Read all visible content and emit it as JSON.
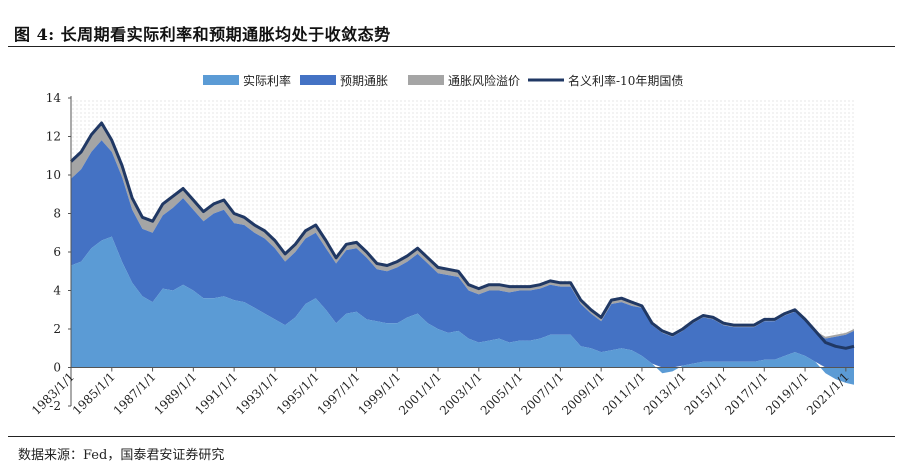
{
  "header": {
    "title": "图 4: 长周期看实际利率和预期通胀均处于收敛态势"
  },
  "footer": {
    "source": "数据来源：Fed，国泰君安证券研究"
  },
  "colors": {
    "real_rate": "#5b9bd5",
    "expected_inflation": "#4472c4",
    "inflation_risk_premium": "#a5a5a5",
    "nominal_10y": "#203864",
    "plot_background_dots": "#d9d9d9"
  },
  "chart_data": {
    "type": "area",
    "title": "",
    "xlabel": "",
    "ylabel": "",
    "ylim": [
      -2,
      14
    ],
    "yticks": [
      -2,
      0,
      2,
      4,
      6,
      8,
      10,
      12,
      14
    ],
    "xlim": [
      1983.0,
      2021.4
    ],
    "xtick_labels": [
      "1983/1/1",
      "1985/1/1",
      "1987/1/1",
      "1989/1/1",
      "1991/1/1",
      "1993/1/1",
      "1995/1/1",
      "1997/1/1",
      "1999/1/1",
      "2001/1/1",
      "2003/1/1",
      "2005/1/1",
      "2007/1/1",
      "2009/1/1",
      "2011/1/1",
      "2013/1/1",
      "2015/1/1",
      "2017/1/1",
      "2019/1/1",
      "2021/1/1"
    ],
    "legend": {
      "position": "top-center",
      "entries": [
        "实际利率",
        "预期通胀",
        "通胀风险溢价",
        "名义利率-10年期国债"
      ]
    },
    "grid": false,
    "x": [
      1983.0,
      1983.5,
      1984.0,
      1984.5,
      1985.0,
      1985.5,
      1986.0,
      1986.5,
      1987.0,
      1987.5,
      1988.0,
      1988.5,
      1989.0,
      1989.5,
      1990.0,
      1990.5,
      1991.0,
      1991.5,
      1992.0,
      1992.5,
      1993.0,
      1993.5,
      1994.0,
      1994.5,
      1995.0,
      1995.5,
      1996.0,
      1996.5,
      1997.0,
      1997.5,
      1998.0,
      1998.5,
      1999.0,
      1999.5,
      2000.0,
      2000.5,
      2001.0,
      2001.5,
      2002.0,
      2002.5,
      2003.0,
      2003.5,
      2004.0,
      2004.5,
      2005.0,
      2005.5,
      2006.0,
      2006.5,
      2007.0,
      2007.5,
      2008.0,
      2008.5,
      2009.0,
      2009.5,
      2010.0,
      2010.5,
      2011.0,
      2011.5,
      2012.0,
      2012.5,
      2013.0,
      2013.5,
      2014.0,
      2014.5,
      2015.0,
      2015.5,
      2016.0,
      2016.5,
      2017.0,
      2017.5,
      2018.0,
      2018.5,
      2019.0,
      2019.5,
      2020.0,
      2020.5,
      2021.0,
      2021.4
    ],
    "series": [
      {
        "name": "实际利率",
        "values": [
          5.3,
          5.5,
          6.2,
          6.6,
          6.8,
          5.5,
          4.4,
          3.7,
          3.4,
          4.1,
          4.0,
          4.3,
          4.0,
          3.6,
          3.6,
          3.7,
          3.5,
          3.4,
          3.1,
          2.8,
          2.5,
          2.2,
          2.6,
          3.3,
          3.6,
          3.0,
          2.3,
          2.8,
          2.9,
          2.5,
          2.4,
          2.3,
          2.3,
          2.6,
          2.8,
          2.3,
          2.0,
          1.8,
          1.9,
          1.5,
          1.3,
          1.4,
          1.5,
          1.3,
          1.4,
          1.4,
          1.5,
          1.7,
          1.7,
          1.7,
          1.1,
          1.0,
          0.8,
          0.9,
          1.0,
          0.9,
          0.6,
          0.2,
          -0.3,
          -0.2,
          0.1,
          0.2,
          0.3,
          0.3,
          0.3,
          0.3,
          0.3,
          0.3,
          0.4,
          0.4,
          0.6,
          0.8,
          0.6,
          0.3,
          -0.3,
          -0.6,
          -0.8,
          -0.9
        ]
      },
      {
        "name": "预期通胀",
        "values": [
          4.5,
          4.8,
          5.0,
          5.2,
          4.4,
          4.4,
          3.8,
          3.5,
          3.6,
          3.8,
          4.3,
          4.5,
          4.2,
          4.0,
          4.4,
          4.5,
          4.0,
          4.0,
          3.9,
          3.9,
          3.7,
          3.3,
          3.4,
          3.4,
          3.4,
          3.2,
          3.1,
          3.3,
          3.3,
          3.2,
          2.7,
          2.7,
          2.9,
          2.9,
          3.1,
          3.1,
          2.9,
          3.0,
          2.8,
          2.5,
          2.5,
          2.6,
          2.5,
          2.6,
          2.6,
          2.6,
          2.6,
          2.6,
          2.5,
          2.5,
          2.2,
          1.8,
          1.6,
          2.4,
          2.4,
          2.3,
          2.5,
          2.0,
          1.8,
          1.6,
          1.8,
          2.1,
          2.3,
          2.2,
          1.9,
          1.8,
          1.8,
          1.8,
          2.0,
          2.0,
          2.1,
          2.1,
          1.8,
          1.5,
          1.5,
          1.6,
          1.7,
          1.9
        ]
      },
      {
        "name": "通胀风险溢价",
        "values": [
          0.9,
          0.9,
          0.9,
          0.9,
          0.6,
          0.6,
          0.6,
          0.6,
          0.6,
          0.6,
          0.6,
          0.5,
          0.5,
          0.5,
          0.5,
          0.5,
          0.5,
          0.4,
          0.4,
          0.4,
          0.4,
          0.4,
          0.4,
          0.4,
          0.4,
          0.4,
          0.3,
          0.3,
          0.3,
          0.3,
          0.3,
          0.3,
          0.3,
          0.3,
          0.3,
          0.3,
          0.3,
          0.3,
          0.3,
          0.3,
          0.3,
          0.3,
          0.3,
          0.3,
          0.2,
          0.2,
          0.2,
          0.2,
          0.2,
          0.2,
          0.2,
          0.2,
          0.2,
          0.2,
          0.2,
          0.2,
          0.1,
          0.1,
          0.1,
          0.1,
          0.1,
          0.1,
          0.1,
          0.1,
          0.1,
          0.1,
          0.1,
          0.1,
          0.1,
          0.1,
          0.1,
          0.1,
          0.1,
          0.1,
          0.1,
          0.1,
          0.1,
          0.1
        ]
      },
      {
        "name": "名义利率-10年期国债",
        "values": [
          10.7,
          11.2,
          12.1,
          12.7,
          11.8,
          10.5,
          8.8,
          7.8,
          7.6,
          8.5,
          8.9,
          9.3,
          8.7,
          8.1,
          8.5,
          8.7,
          8.0,
          7.8,
          7.4,
          7.1,
          6.6,
          5.9,
          6.4,
          7.1,
          7.4,
          6.6,
          5.7,
          6.4,
          6.5,
          6.0,
          5.4,
          5.3,
          5.5,
          5.8,
          6.2,
          5.7,
          5.2,
          5.1,
          5.0,
          4.3,
          4.1,
          4.3,
          4.3,
          4.2,
          4.2,
          4.2,
          4.3,
          4.5,
          4.4,
          4.4,
          3.5,
          3.0,
          2.6,
          3.5,
          3.6,
          3.4,
          3.2,
          2.3,
          1.9,
          1.7,
          2.0,
          2.4,
          2.7,
          2.6,
          2.3,
          2.2,
          2.2,
          2.2,
          2.5,
          2.5,
          2.8,
          3.0,
          2.5,
          1.9,
          1.3,
          1.1,
          1.0,
          1.1
        ]
      }
    ]
  }
}
